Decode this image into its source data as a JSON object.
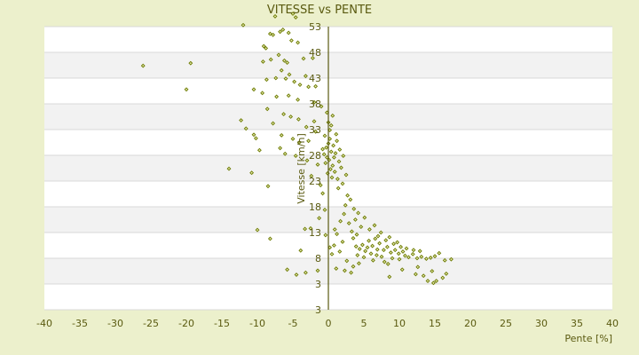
{
  "chart_data": {
    "type": "scatter",
    "title": "VITESSE vs PENTE",
    "xlabel": "Pente [%]",
    "ylabel": "Vitesse [km/h]",
    "xlim": [
      -40,
      40
    ],
    "ylim": [
      -2,
      53
    ],
    "xticks": [
      "-40",
      "-35",
      "-30",
      "-25",
      "-20",
      "-15",
      "-10",
      "-5",
      "0",
      "5",
      "10",
      "15",
      "20",
      "25",
      "30",
      "35",
      "40"
    ],
    "yticks": [
      "53",
      "48",
      "43",
      "38",
      "33",
      "28",
      "23",
      "18",
      "13",
      "8",
      "3",
      "3"
    ],
    "grid": true,
    "marker_color": "#6b7a00",
    "axis_color": "#5a5a10",
    "band_color": "#f2f2f2",
    "points": [
      [
        -26.1,
        45.4
      ],
      [
        -19.4,
        45.9
      ],
      [
        -20.0,
        40.8
      ],
      [
        -14.0,
        25.4
      ],
      [
        -10.8,
        24.6
      ],
      [
        -12.3,
        34.8
      ],
      [
        -11.6,
        33.2
      ],
      [
        -10.5,
        32.0
      ],
      [
        -10.2,
        31.3
      ],
      [
        -9.7,
        29.0
      ],
      [
        -8.5,
        22.0
      ],
      [
        -10.0,
        13.5
      ],
      [
        -8.2,
        11.8
      ],
      [
        -5.8,
        5.8
      ],
      [
        -4.5,
        4.8
      ],
      [
        -3.2,
        5.2
      ],
      [
        -1.5,
        5.6
      ],
      [
        -3.3,
        13.7
      ],
      [
        -2.5,
        13.8
      ],
      [
        -3.9,
        9.5
      ],
      [
        -12.0,
        53.3
      ],
      [
        -7.5,
        55.0
      ],
      [
        -5.0,
        55.5
      ],
      [
        -4.6,
        54.8
      ],
      [
        -8.2,
        51.6
      ],
      [
        -7.8,
        51.4
      ],
      [
        -6.8,
        52.0
      ],
      [
        -6.4,
        52.4
      ],
      [
        -5.6,
        51.8
      ],
      [
        -5.2,
        50.3
      ],
      [
        -4.3,
        49.9
      ],
      [
        -9.1,
        49.2
      ],
      [
        -8.8,
        48.8
      ],
      [
        -7.0,
        47.5
      ],
      [
        -6.2,
        46.4
      ],
      [
        -5.8,
        46.0
      ],
      [
        -3.5,
        46.8
      ],
      [
        -2.2,
        46.9
      ],
      [
        -9.2,
        46.2
      ],
      [
        -8.1,
        46.6
      ],
      [
        -6.6,
        44.5
      ],
      [
        -5.5,
        43.7
      ],
      [
        -3.2,
        43.4
      ],
      [
        -7.4,
        43.0
      ],
      [
        -6.0,
        42.9
      ],
      [
        -4.8,
        42.3
      ],
      [
        -8.7,
        42.7
      ],
      [
        -4.0,
        41.7
      ],
      [
        -2.8,
        41.3
      ],
      [
        -1.8,
        41.4
      ],
      [
        -10.5,
        40.8
      ],
      [
        -9.3,
        40.1
      ],
      [
        -7.3,
        39.4
      ],
      [
        -5.6,
        39.6
      ],
      [
        -4.3,
        38.8
      ],
      [
        -2.0,
        38.3
      ],
      [
        -1.0,
        37.5
      ],
      [
        -8.6,
        37.0
      ],
      [
        -6.3,
        36.0
      ],
      [
        -5.3,
        35.5
      ],
      [
        -4.2,
        35.0
      ],
      [
        -2.0,
        34.6
      ],
      [
        -7.8,
        34.2
      ],
      [
        -3.1,
        33.5
      ],
      [
        -1.8,
        32.6
      ],
      [
        -6.6,
        31.9
      ],
      [
        -5.0,
        31.2
      ],
      [
        -4.1,
        30.5
      ],
      [
        -2.8,
        30.8
      ],
      [
        -6.8,
        29.4
      ],
      [
        -6.1,
        28.3
      ],
      [
        -4.6,
        27.9
      ],
      [
        -3.0,
        27.0
      ],
      [
        -1.5,
        26.2
      ],
      [
        -2.4,
        24.0
      ],
      [
        -1.1,
        22.2
      ],
      [
        -0.8,
        20.6
      ],
      [
        -0.5,
        17.4
      ],
      [
        -1.3,
        15.8
      ],
      [
        -0.4,
        12.5
      ],
      [
        -0.6,
        28.2
      ],
      [
        -0.3,
        29.5
      ],
      [
        0.0,
        30.3
      ],
      [
        0.2,
        31.2
      ],
      [
        -0.2,
        27.6
      ],
      [
        0.4,
        28.7
      ],
      [
        0.1,
        27.1
      ],
      [
        -0.4,
        26.5
      ],
      [
        0.6,
        26.0
      ],
      [
        0.3,
        25.3
      ],
      [
        -0.1,
        24.5
      ],
      [
        0.5,
        23.7
      ],
      [
        0.8,
        27.6
      ],
      [
        1.0,
        28.4
      ],
      [
        0.7,
        29.9
      ],
      [
        1.2,
        30.8
      ],
      [
        1.5,
        26.8
      ],
      [
        0.9,
        24.8
      ],
      [
        1.3,
        23.4
      ],
      [
        -0.8,
        29.2
      ],
      [
        -0.5,
        31.8
      ],
      [
        0.2,
        32.9
      ],
      [
        0.0,
        34.4
      ],
      [
        0.6,
        35.7
      ],
      [
        -0.2,
        36.3
      ],
      [
        0.4,
        33.8
      ],
      [
        1.1,
        32.1
      ],
      [
        1.6,
        29.1
      ],
      [
        2.1,
        27.9
      ],
      [
        1.8,
        25.6
      ],
      [
        2.5,
        24.2
      ],
      [
        2.0,
        22.5
      ],
      [
        1.4,
        21.6
      ],
      [
        2.7,
        20.2
      ],
      [
        3.1,
        19.4
      ],
      [
        2.4,
        18.3
      ],
      [
        3.6,
        17.6
      ],
      [
        4.2,
        16.8
      ],
      [
        3.8,
        15.5
      ],
      [
        5.1,
        15.9
      ],
      [
        2.9,
        14.8
      ],
      [
        4.6,
        14.1
      ],
      [
        5.8,
        13.6
      ],
      [
        6.5,
        14.4
      ],
      [
        3.3,
        13.2
      ],
      [
        7.4,
        13.0
      ],
      [
        1.2,
        12.7
      ],
      [
        2.0,
        11.2
      ],
      [
        0.8,
        10.5
      ],
      [
        1.6,
        9.3
      ],
      [
        0.5,
        8.8
      ],
      [
        2.6,
        7.5
      ],
      [
        3.5,
        6.4
      ],
      [
        4.3,
        7.0
      ],
      [
        1.1,
        6.0
      ],
      [
        3.2,
        5.2
      ],
      [
        5.2,
        9.4
      ],
      [
        6.0,
        8.9
      ],
      [
        6.8,
        8.6
      ],
      [
        7.5,
        8.3
      ],
      [
        3.9,
        10.3
      ],
      [
        4.4,
        9.8
      ],
      [
        4.8,
        10.6
      ],
      [
        5.5,
        10.1
      ],
      [
        6.2,
        10.4
      ],
      [
        6.9,
        9.7
      ],
      [
        7.2,
        10.9
      ],
      [
        7.8,
        9.6
      ],
      [
        8.3,
        10.2
      ],
      [
        8.8,
        9.1
      ],
      [
        9.4,
        9.6
      ],
      [
        9.9,
        8.9
      ],
      [
        10.5,
        9.3
      ],
      [
        10.8,
        8.5
      ],
      [
        11.3,
        8.2
      ],
      [
        11.9,
        8.8
      ],
      [
        12.5,
        8.0
      ],
      [
        13.1,
        8.3
      ],
      [
        13.8,
        7.9
      ],
      [
        14.4,
        8.1
      ],
      [
        4.1,
        8.6
      ],
      [
        5.0,
        8.2
      ],
      [
        5.7,
        11.4
      ],
      [
        6.6,
        11.8
      ],
      [
        7.0,
        12.3
      ],
      [
        8.1,
        11.5
      ],
      [
        8.6,
        12.1
      ],
      [
        9.2,
        10.8
      ],
      [
        9.7,
        11.1
      ],
      [
        10.2,
        10.2
      ],
      [
        3.5,
        11.9
      ],
      [
        4.0,
        12.6
      ],
      [
        6.3,
        7.6
      ],
      [
        7.9,
        7.3
      ],
      [
        8.4,
        6.9
      ],
      [
        9.0,
        8.0
      ],
      [
        10.0,
        7.8
      ],
      [
        11.0,
        9.9
      ],
      [
        12.0,
        9.6
      ],
      [
        12.9,
        9.4
      ],
      [
        15.0,
        8.4
      ],
      [
        15.6,
        9.0
      ],
      [
        16.4,
        7.6
      ],
      [
        17.3,
        7.8
      ],
      [
        12.3,
        4.9
      ],
      [
        13.4,
        4.6
      ],
      [
        14.0,
        3.6
      ],
      [
        14.8,
        3.2
      ],
      [
        15.2,
        3.6
      ],
      [
        16.1,
        4.2
      ],
      [
        16.6,
        5.0
      ],
      [
        10.4,
        5.8
      ],
      [
        12.6,
        6.3
      ],
      [
        8.6,
        4.4
      ],
      [
        14.6,
        5.5
      ],
      [
        2.3,
        5.6
      ],
      [
        0.2,
        10.1
      ],
      [
        0.9,
        13.6
      ],
      [
        1.7,
        15.2
      ],
      [
        2.2,
        16.6
      ]
    ]
  }
}
